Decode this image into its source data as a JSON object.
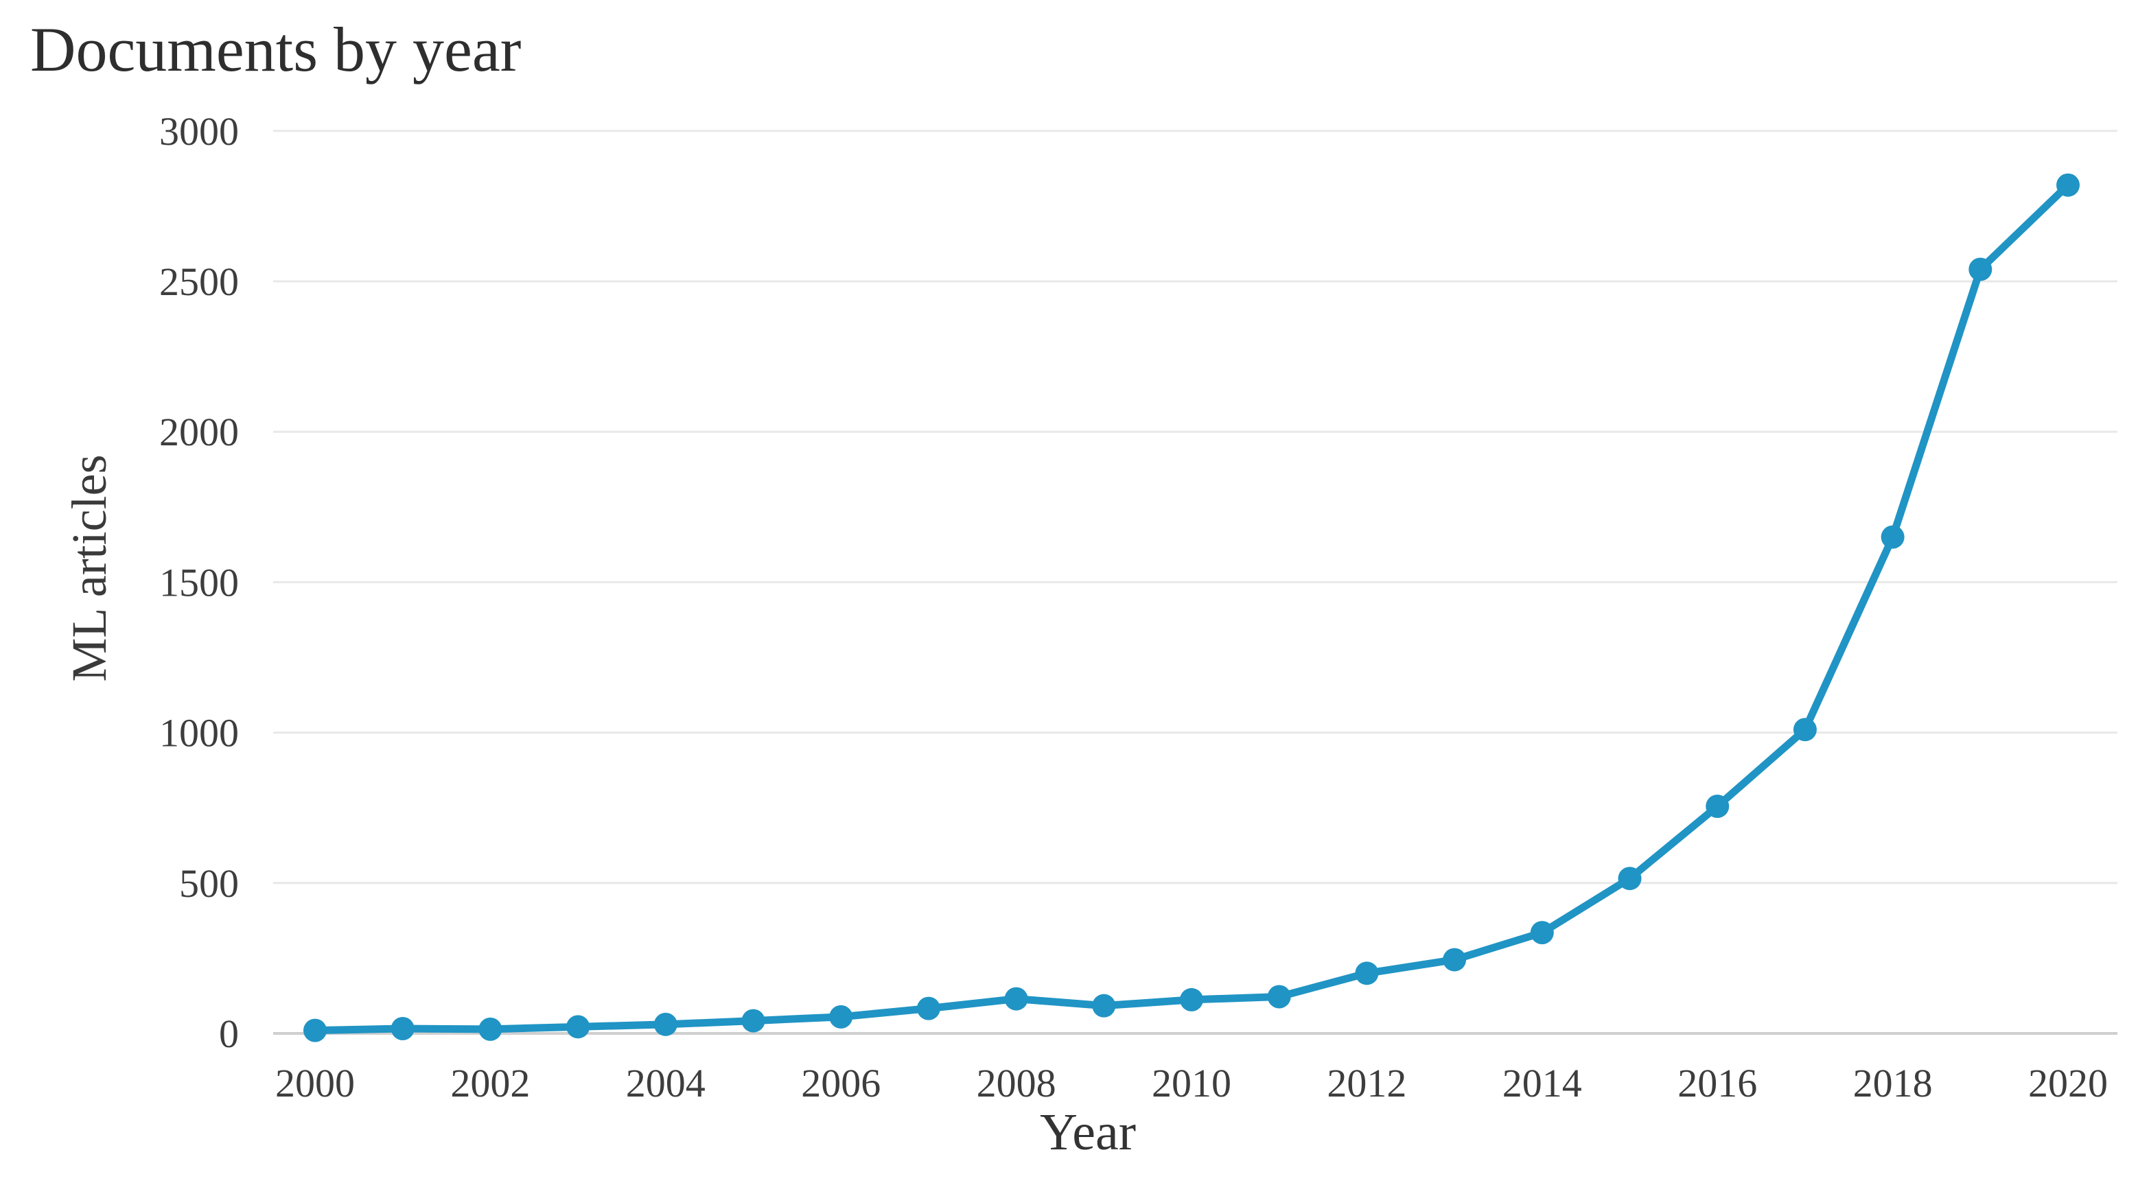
{
  "chart_data": {
    "type": "line",
    "title": "Documents by year",
    "xlabel": "Year",
    "ylabel": "ML articles",
    "x": [
      2000,
      2001,
      2002,
      2003,
      2004,
      2005,
      2006,
      2007,
      2008,
      2009,
      2010,
      2011,
      2012,
      2013,
      2014,
      2015,
      2016,
      2017,
      2018,
      2019,
      2020
    ],
    "series": [
      {
        "name": "ML articles",
        "values": [
          10,
          16,
          14,
          22,
          30,
          42,
          55,
          83,
          115,
          92,
          112,
          122,
          200,
          245,
          335,
          515,
          755,
          1010,
          1650,
          2540,
          2820
        ]
      }
    ],
    "ylim": [
      0,
      3000
    ],
    "yticks": [
      0,
      500,
      1000,
      1500,
      2000,
      2500,
      3000
    ],
    "xticks": [
      2000,
      2002,
      2004,
      2006,
      2008,
      2010,
      2012,
      2014,
      2016,
      2018,
      2020
    ],
    "grid": true,
    "legend": false,
    "marker": "circle",
    "colors": {
      "line": "#2094c4",
      "marker": "#2094c4",
      "gridline": "#e8e8e8",
      "axis_line": "#cfcfcf",
      "text": "#3d3d3d",
      "title_text": "#2e2e2e",
      "background": "#ffffff"
    }
  }
}
